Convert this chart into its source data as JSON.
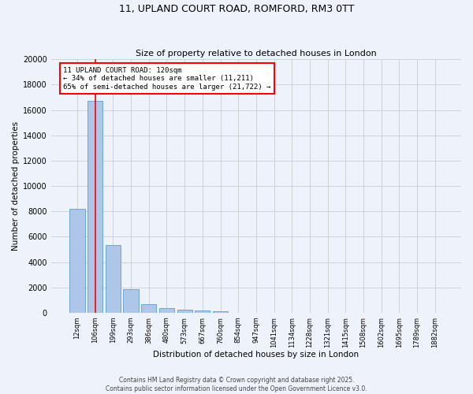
{
  "title_line1": "11, UPLAND COURT ROAD, ROMFORD, RM3 0TT",
  "title_line2": "Size of property relative to detached houses in London",
  "xlabel": "Distribution of detached houses by size in London",
  "ylabel": "Number of detached properties",
  "categories": [
    "12sqm",
    "106sqm",
    "199sqm",
    "293sqm",
    "386sqm",
    "480sqm",
    "573sqm",
    "667sqm",
    "760sqm",
    "854sqm",
    "947sqm",
    "1041sqm",
    "1134sqm",
    "1228sqm",
    "1321sqm",
    "1415sqm",
    "1508sqm",
    "1602sqm",
    "1695sqm",
    "1789sqm",
    "1882sqm"
  ],
  "values": [
    8200,
    16700,
    5350,
    1850,
    650,
    370,
    270,
    200,
    130,
    0,
    0,
    0,
    0,
    0,
    0,
    0,
    0,
    0,
    0,
    0,
    0
  ],
  "bar_color": "#aec6e8",
  "bar_edge_color": "#5a9fd4",
  "vline_x_idx": 1,
  "vline_color": "red",
  "annotation_text": "11 UPLAND COURT ROAD: 120sqm\n← 34% of detached houses are smaller (11,211)\n65% of semi-detached houses are larger (21,722) →",
  "ylim": [
    0,
    20000
  ],
  "yticks": [
    0,
    2000,
    4000,
    6000,
    8000,
    10000,
    12000,
    14000,
    16000,
    18000,
    20000
  ],
  "grid_color": "#cccccc",
  "background_color": "#eef2fa",
  "footer_line1": "Contains HM Land Registry data © Crown copyright and database right 2025.",
  "footer_line2": "Contains public sector information licensed under the Open Government Licence v3.0."
}
